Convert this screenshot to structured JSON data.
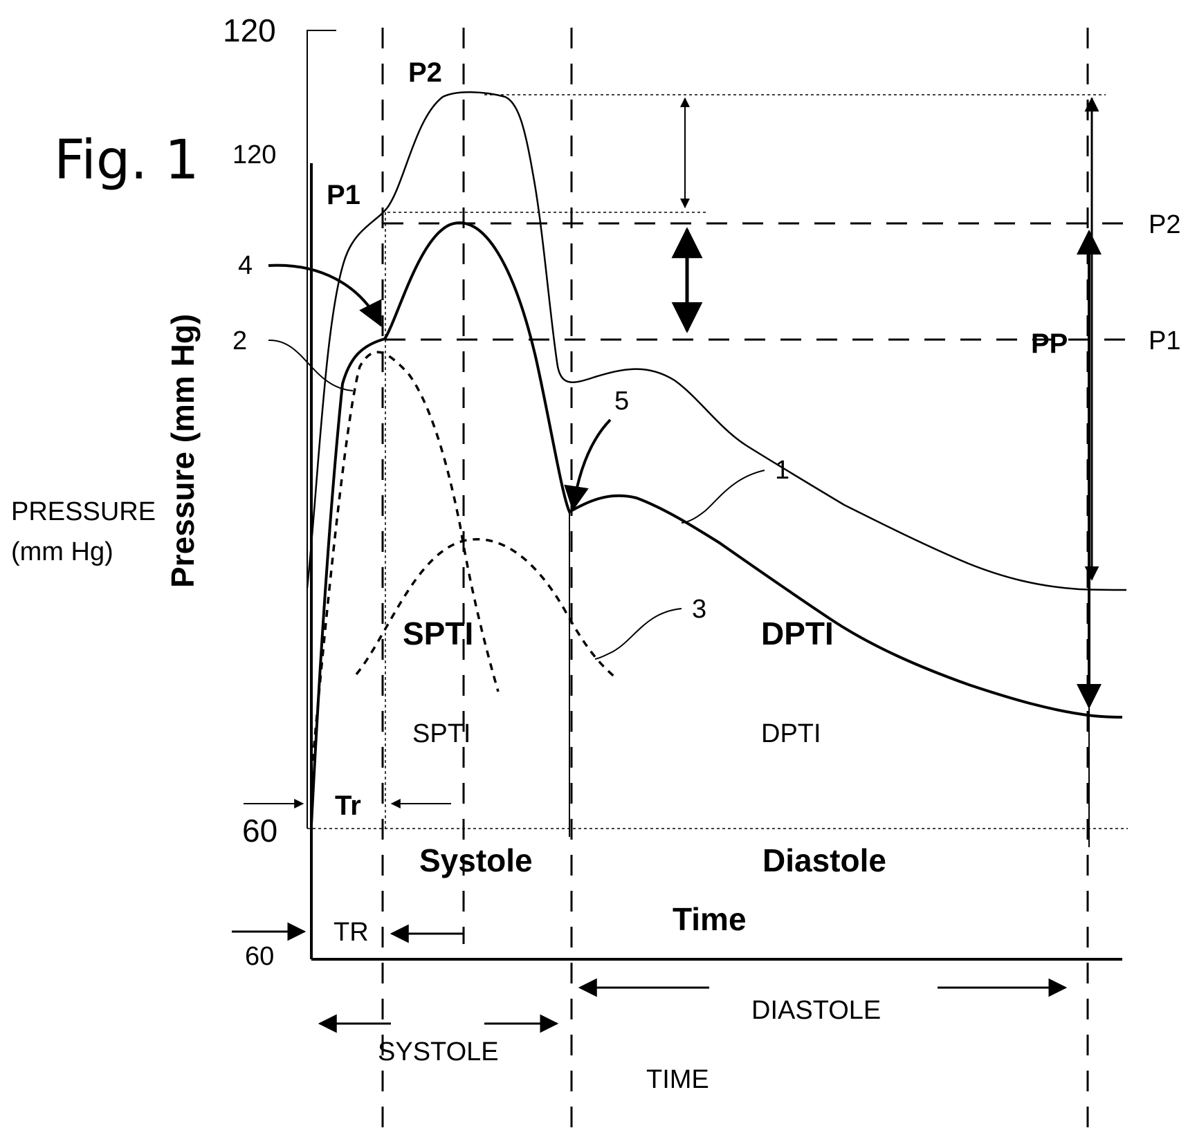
{
  "figure": {
    "title": "Fig. 1",
    "y_axis": {
      "label_rotated": "Pressure (mm Hg)",
      "label_line1": "PRESSURE",
      "label_line2": "(mm Hg)",
      "tick_top_large": "120",
      "tick_top_small": "120",
      "tick_bottom_large": "60",
      "tick_bottom_small": "60"
    },
    "x_axis": {
      "label_bold": "Time",
      "label_plain": "TIME"
    },
    "phases": {
      "systole_bold": "Systole",
      "diastole_bold": "Diastole",
      "systole_plain": "SYSTOLE",
      "diastole_plain": "DIASTOLE"
    },
    "areas": {
      "spti_bold": "SPTI",
      "dpti_bold": "DPTI",
      "spti_plain": "SPTI",
      "dpti_plain": "DPTI"
    },
    "intervals": {
      "tr_bold": "Tr",
      "tr_plain": "TR"
    },
    "pressure_points": {
      "p1_top": "P1",
      "p2_top": "P2",
      "p1_right": "P1",
      "p2_right": "P2",
      "pp": "PP"
    },
    "reference_numerals": {
      "n1": "1",
      "n2": "2",
      "n3": "3",
      "n4": "4",
      "n5": "5"
    }
  }
}
